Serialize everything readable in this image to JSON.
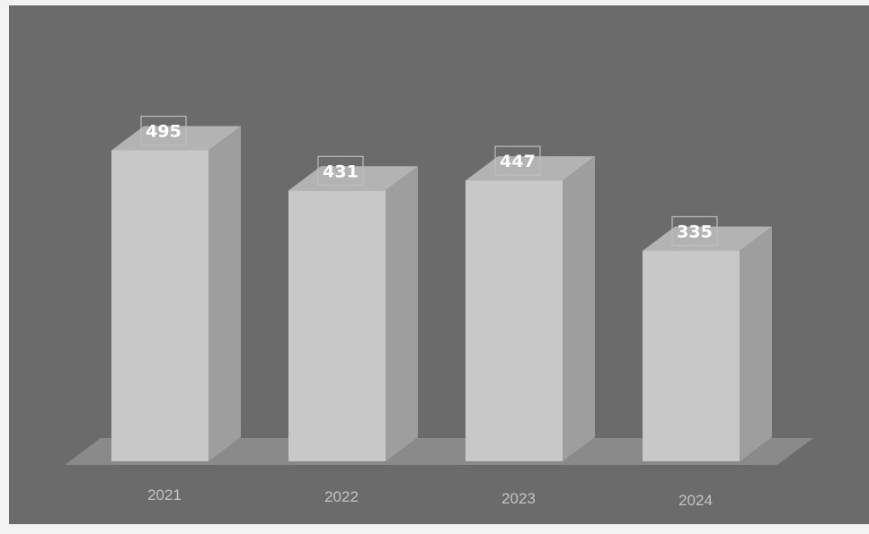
{
  "chart_data": {
    "type": "bar",
    "style": "3d-column",
    "categories": [
      "2021",
      "2022",
      "2023",
      "2024"
    ],
    "values": [
      495,
      431,
      447,
      335
    ],
    "title": "",
    "xlabel": "",
    "ylabel": "",
    "ylim": [
      0,
      550
    ],
    "grid": false,
    "legend": "none",
    "data_labels": true
  },
  "colors": {
    "background": "#6b6b6b",
    "floor": "#8a8a8a",
    "bar_front": "#c8c8c8",
    "bar_side": "#9e9e9e",
    "bar_top": "#b3b3b3",
    "label_text": "#ffffff",
    "category_text": "#c4c4c4"
  }
}
